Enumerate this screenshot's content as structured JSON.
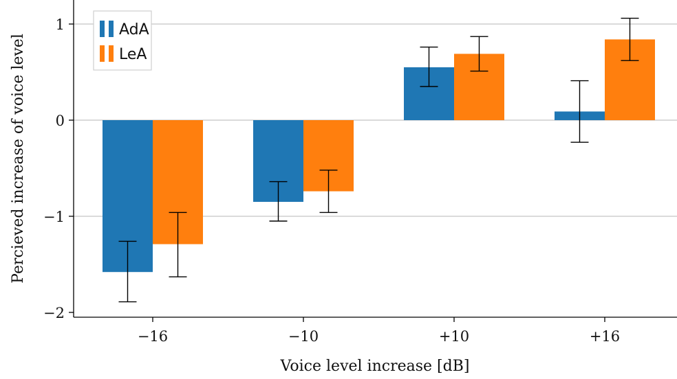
{
  "chart_data": {
    "type": "bar",
    "xlabel": "Voice level increase [dB]",
    "ylabel": "Percieved increase of voice level",
    "categories": [
      "−16",
      "−10",
      "+10",
      "+16"
    ],
    "ylim": [
      -2.05,
      1.2
    ],
    "yticks": [
      1,
      0,
      -1,
      -2
    ],
    "ytick_labels": [
      "1",
      "0",
      "−1",
      "−2"
    ],
    "grid": true,
    "legend_position": "top-left",
    "series": [
      {
        "name": "AdA",
        "color": "#1f77b4",
        "values": [
          -1.58,
          -0.85,
          0.55,
          0.09
        ],
        "error_low": [
          -1.89,
          -1.05,
          0.35,
          -0.23
        ],
        "error_high": [
          -1.26,
          -0.64,
          0.76,
          0.41
        ]
      },
      {
        "name": "LeA",
        "color": "#ff7f0e",
        "values": [
          -1.29,
          -0.74,
          0.69,
          0.84
        ],
        "error_low": [
          -1.63,
          -0.96,
          0.51,
          0.62
        ],
        "error_high": [
          -0.96,
          -0.52,
          0.87,
          1.06
        ]
      }
    ]
  }
}
